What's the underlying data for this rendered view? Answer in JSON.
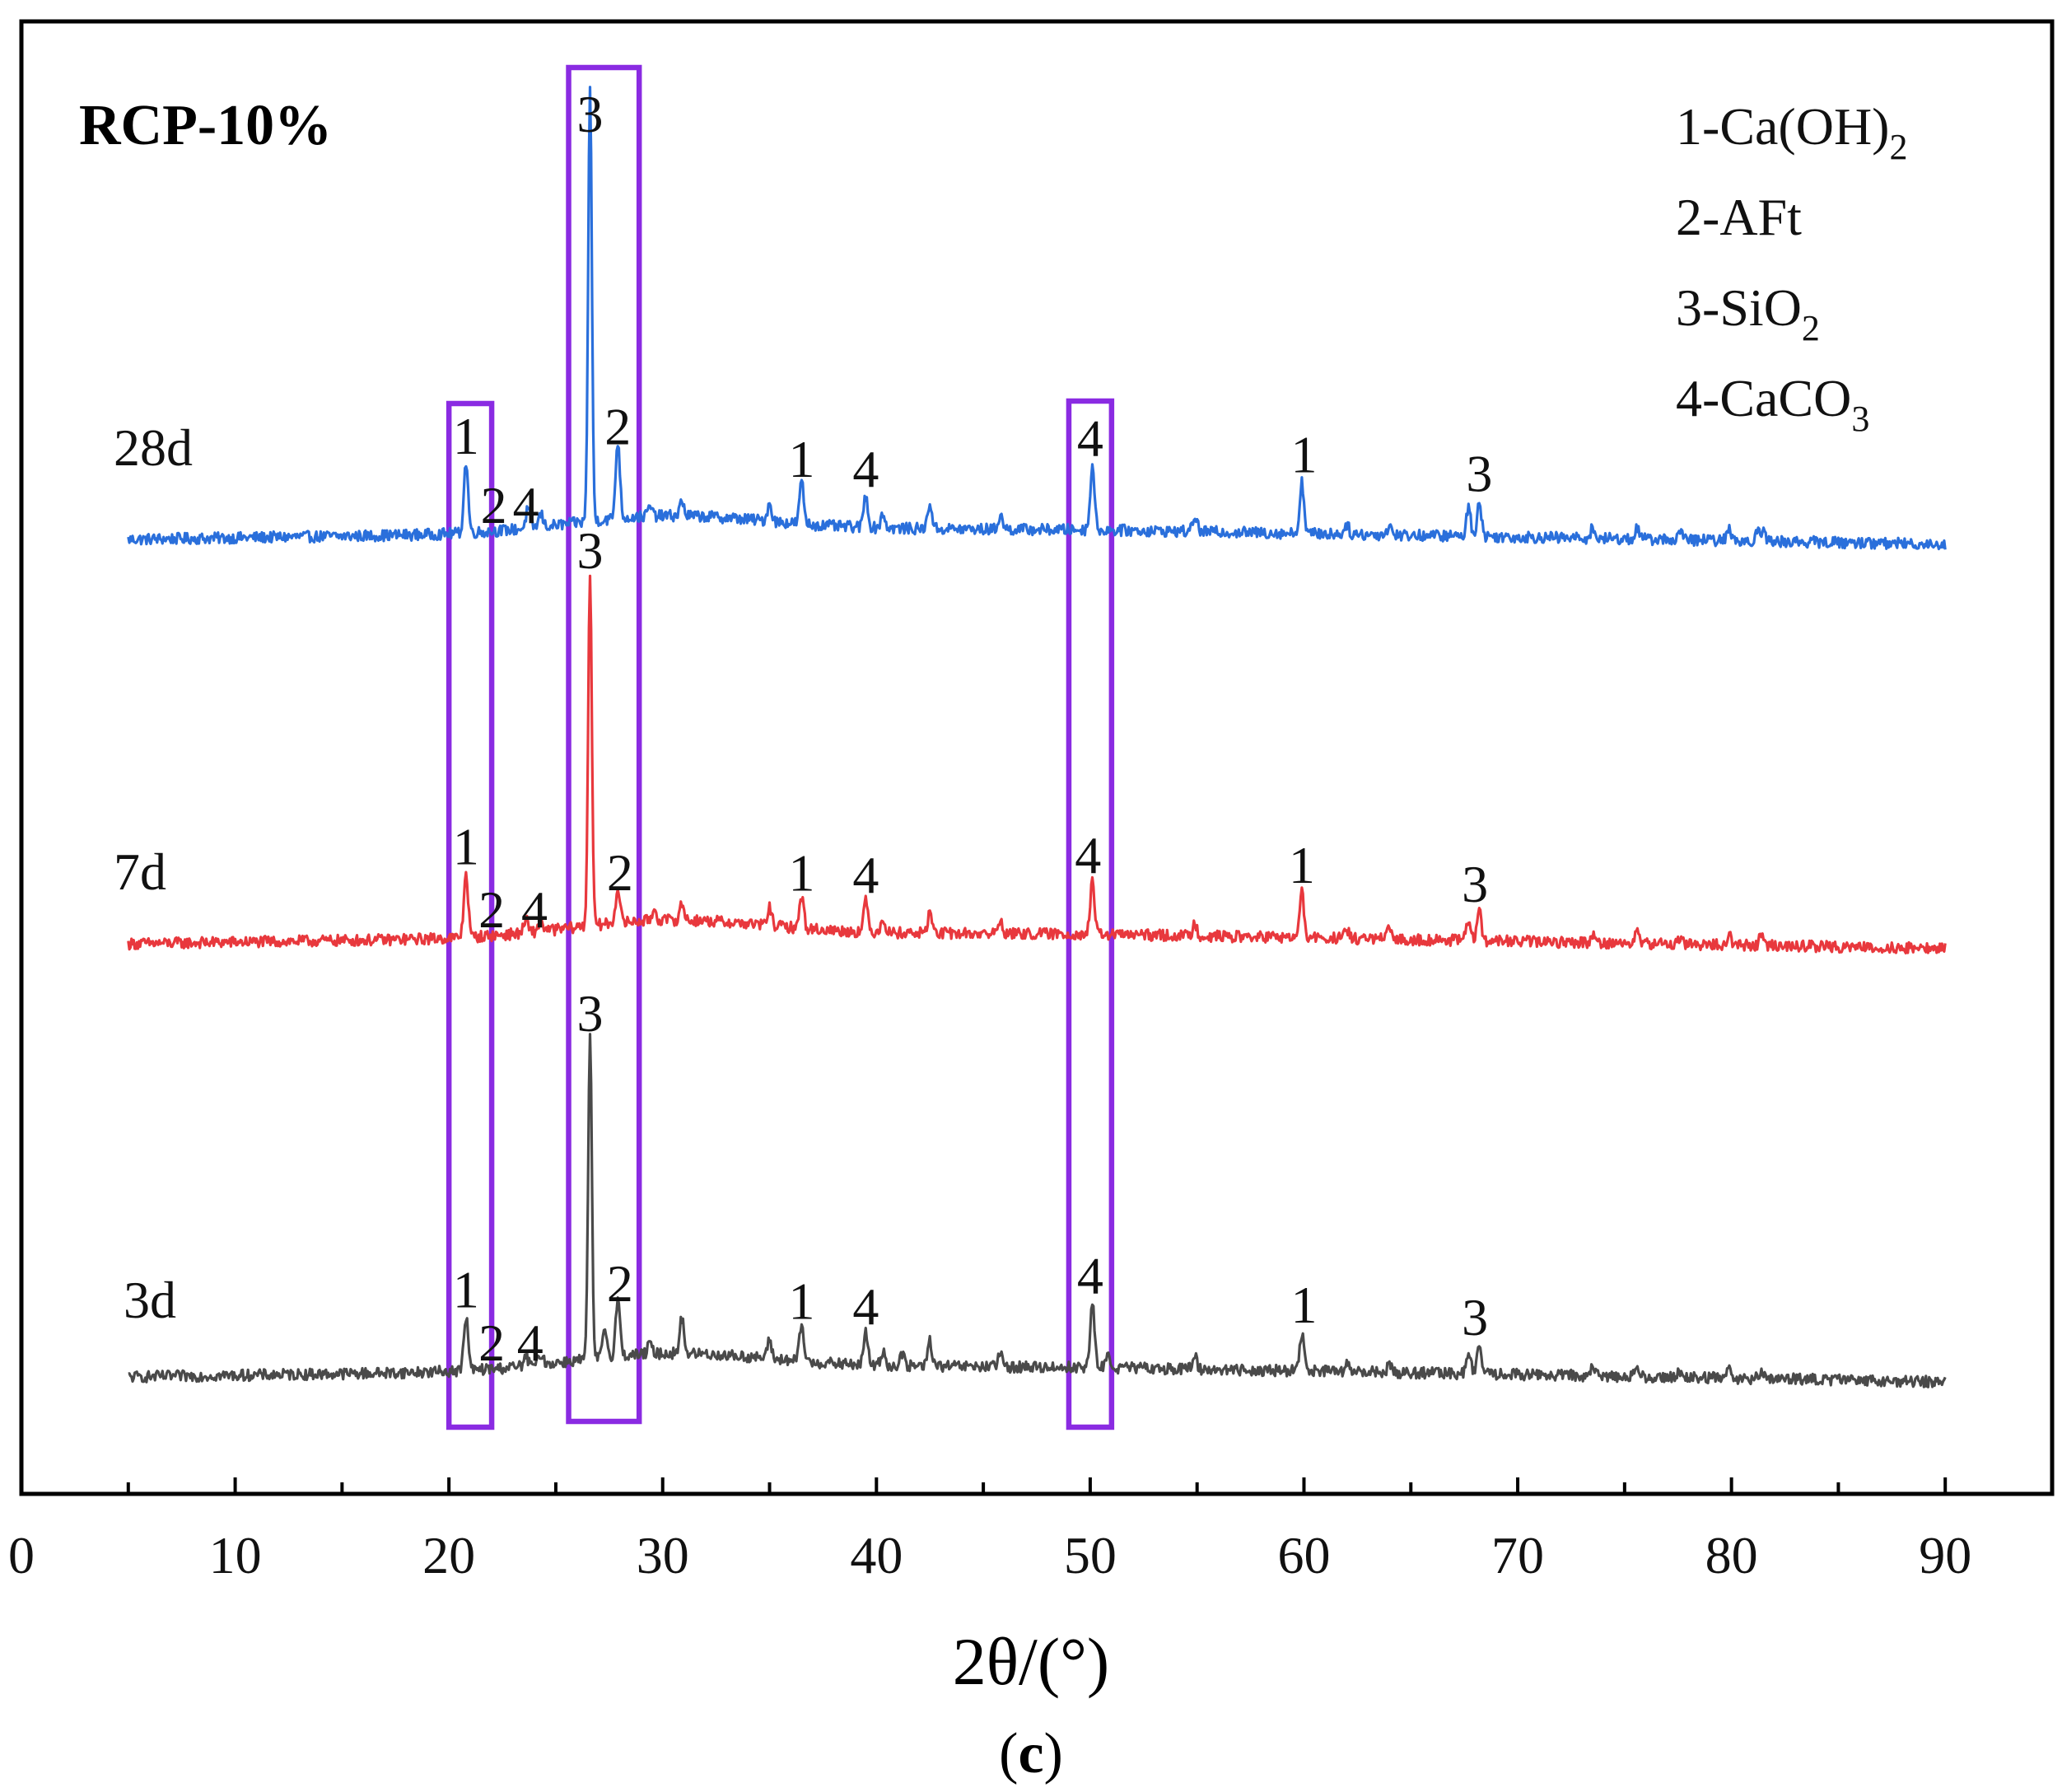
{
  "chart_data": {
    "type": "line",
    "title": "RCP-10%",
    "panel_label": "(c)",
    "xlabel": "2θ/(°)",
    "ylabel": "",
    "xlim": [
      0,
      95
    ],
    "xticks": [
      0,
      10,
      20,
      30,
      40,
      50,
      60,
      70,
      80,
      90
    ],
    "x_range": [
      5,
      90
    ],
    "grid": false,
    "legend": {
      "placement": "top-right",
      "entries": [
        {
          "text": "1-Ca(OH)",
          "sub": "2"
        },
        {
          "text": "2-AFt",
          "sub": ""
        },
        {
          "text": "3-SiO",
          "sub": "2"
        },
        {
          "text": "4-CaCO",
          "sub": "3"
        }
      ]
    },
    "highlight_ranges": [
      {
        "x": [
          20.0,
          22.0
        ],
        "label": "1"
      },
      {
        "x": [
          25.6,
          28.9
        ],
        "label": "3"
      },
      {
        "x": [
          49.0,
          51.0
        ],
        "label": "4"
      }
    ],
    "series": [
      {
        "name": "28d",
        "color": "#2a6fdb",
        "baseline": [
          [
            5,
            0.0
          ],
          [
            20,
            0.15
          ],
          [
            35,
            0.35
          ],
          [
            50,
            0.3
          ],
          [
            90,
            -0.15
          ]
        ],
        "peaks": [
          {
            "x": 20.8,
            "h": 2.2
          },
          {
            "x": 23.7,
            "h": 0.6
          },
          {
            "x": 24.3,
            "h": 0.4
          },
          {
            "x": 26.6,
            "h": 13.5
          },
          {
            "x": 27.9,
            "h": 2.4
          },
          {
            "x": 29.4,
            "h": 0.3
          },
          {
            "x": 30.9,
            "h": 0.45
          },
          {
            "x": 35.0,
            "h": 0.55
          },
          {
            "x": 36.5,
            "h": 1.3
          },
          {
            "x": 39.5,
            "h": 1.0
          },
          {
            "x": 40.3,
            "h": 0.45
          },
          {
            "x": 42.5,
            "h": 0.8
          },
          {
            "x": 45.8,
            "h": 0.45
          },
          {
            "x": 50.1,
            "h": 2.0
          },
          {
            "x": 54.9,
            "h": 0.5
          },
          {
            "x": 59.9,
            "h": 1.6
          },
          {
            "x": 62.0,
            "h": 0.3
          },
          {
            "x": 64.0,
            "h": 0.3
          },
          {
            "x": 67.7,
            "h": 0.9
          },
          {
            "x": 68.2,
            "h": 1.1
          },
          {
            "x": 73.5,
            "h": 0.3
          },
          {
            "x": 75.6,
            "h": 0.35
          },
          {
            "x": 77.6,
            "h": 0.25
          },
          {
            "x": 79.9,
            "h": 0.35
          },
          {
            "x": 81.2,
            "h": 0.3
          },
          {
            "x": 81.5,
            "h": 0.3
          }
        ],
        "peak_labels": [
          {
            "x": 20.8,
            "label": "1"
          },
          {
            "x": 22.1,
            "label": "2"
          },
          {
            "x": 23.6,
            "label": "4"
          },
          {
            "x": 26.6,
            "label": "3"
          },
          {
            "x": 27.9,
            "label": "2"
          },
          {
            "x": 36.5,
            "label": "1"
          },
          {
            "x": 39.5,
            "label": "4"
          },
          {
            "x": 50.0,
            "label": "4"
          },
          {
            "x": 60.0,
            "label": "1"
          },
          {
            "x": 68.2,
            "label": "3"
          }
        ]
      },
      {
        "name": "7d",
        "color": "#e8383d",
        "baseline": [
          [
            5,
            0.0
          ],
          [
            20,
            0.15
          ],
          [
            35,
            0.35
          ],
          [
            50,
            0.3
          ],
          [
            90,
            -0.15
          ]
        ],
        "peaks": [
          {
            "x": 20.8,
            "h": 2.0
          },
          {
            "x": 23.6,
            "h": 0.4
          },
          {
            "x": 24.3,
            "h": 0.35
          },
          {
            "x": 26.6,
            "h": 11.0
          },
          {
            "x": 27.9,
            "h": 1.1
          },
          {
            "x": 29.6,
            "h": 0.35
          },
          {
            "x": 30.9,
            "h": 0.5
          },
          {
            "x": 35.0,
            "h": 0.55
          },
          {
            "x": 36.5,
            "h": 1.0
          },
          {
            "x": 39.5,
            "h": 0.95
          },
          {
            "x": 40.3,
            "h": 0.45
          },
          {
            "x": 42.5,
            "h": 0.65
          },
          {
            "x": 45.8,
            "h": 0.4
          },
          {
            "x": 50.1,
            "h": 1.6
          },
          {
            "x": 54.9,
            "h": 0.4
          },
          {
            "x": 59.9,
            "h": 1.4
          },
          {
            "x": 62.0,
            "h": 0.25
          },
          {
            "x": 64.0,
            "h": 0.3
          },
          {
            "x": 67.7,
            "h": 0.7
          },
          {
            "x": 68.2,
            "h": 0.9
          },
          {
            "x": 73.5,
            "h": 0.25
          },
          {
            "x": 75.6,
            "h": 0.35
          },
          {
            "x": 77.6,
            "h": 0.2
          },
          {
            "x": 79.9,
            "h": 0.3
          },
          {
            "x": 81.4,
            "h": 0.3
          }
        ],
        "peak_labels": [
          {
            "x": 20.8,
            "label": "1"
          },
          {
            "x": 22.0,
            "label": "2"
          },
          {
            "x": 24.0,
            "label": "4"
          },
          {
            "x": 26.6,
            "label": "3"
          },
          {
            "x": 28.0,
            "label": "2"
          },
          {
            "x": 36.5,
            "label": "1"
          },
          {
            "x": 39.5,
            "label": "4"
          },
          {
            "x": 49.9,
            "label": "4"
          },
          {
            "x": 59.9,
            "label": "1"
          },
          {
            "x": 68.0,
            "label": "3"
          }
        ]
      },
      {
        "name": "3d",
        "color": "#4a4a4a",
        "baseline": [
          [
            5,
            0.0
          ],
          [
            20,
            0.15
          ],
          [
            35,
            0.35
          ],
          [
            50,
            0.3
          ],
          [
            90,
            -0.15
          ]
        ],
        "peaks": [
          {
            "x": 20.8,
            "h": 1.7
          },
          {
            "x": 23.6,
            "h": 0.3
          },
          {
            "x": 24.3,
            "h": 0.35
          },
          {
            "x": 26.6,
            "h": 10.0
          },
          {
            "x": 27.3,
            "h": 0.9
          },
          {
            "x": 27.9,
            "h": 1.8
          },
          {
            "x": 29.4,
            "h": 0.3
          },
          {
            "x": 30.9,
            "h": 1.1
          },
          {
            "x": 35.0,
            "h": 0.55
          },
          {
            "x": 36.5,
            "h": 1.15
          },
          {
            "x": 39.5,
            "h": 1.0
          },
          {
            "x": 40.3,
            "h": 0.45
          },
          {
            "x": 41.2,
            "h": 0.35
          },
          {
            "x": 42.5,
            "h": 0.8
          },
          {
            "x": 45.8,
            "h": 0.4
          },
          {
            "x": 50.1,
            "h": 2.0
          },
          {
            "x": 50.8,
            "h": 0.4
          },
          {
            "x": 54.9,
            "h": 0.4
          },
          {
            "x": 59.9,
            "h": 1.2
          },
          {
            "x": 62.0,
            "h": 0.2
          },
          {
            "x": 64.0,
            "h": 0.25
          },
          {
            "x": 67.7,
            "h": 0.7
          },
          {
            "x": 68.2,
            "h": 0.9
          },
          {
            "x": 73.5,
            "h": 0.25
          },
          {
            "x": 75.6,
            "h": 0.3
          },
          {
            "x": 77.6,
            "h": 0.2
          },
          {
            "x": 79.9,
            "h": 0.35
          },
          {
            "x": 81.4,
            "h": 0.3
          }
        ],
        "peak_labels": [
          {
            "x": 20.8,
            "label": "1"
          },
          {
            "x": 22.0,
            "label": "2"
          },
          {
            "x": 23.8,
            "label": "4"
          },
          {
            "x": 26.6,
            "label": "3"
          },
          {
            "x": 28.0,
            "label": "2"
          },
          {
            "x": 36.5,
            "label": "1"
          },
          {
            "x": 39.5,
            "label": "4"
          },
          {
            "x": 50.0,
            "label": "4"
          },
          {
            "x": 60.0,
            "label": "1"
          },
          {
            "x": 68.0,
            "label": "3"
          }
        ]
      }
    ]
  }
}
